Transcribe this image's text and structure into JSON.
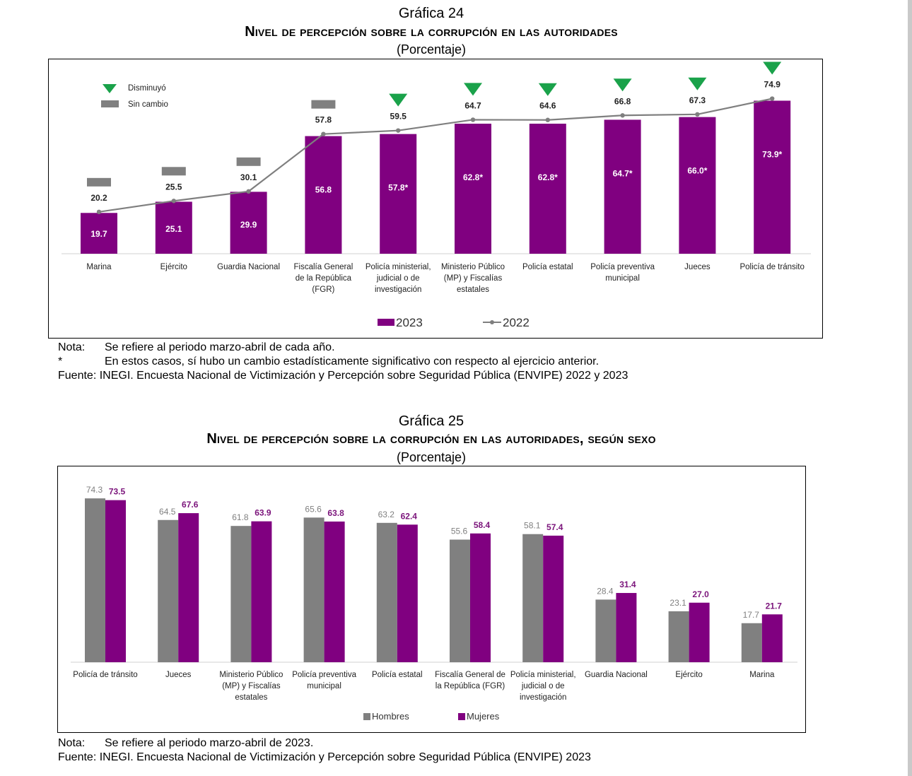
{
  "colors": {
    "purple": "#800080",
    "gray": "#808080",
    "green": "#1aa24a",
    "line2022": "#7f7f7f",
    "womenLabel": "#7b147b"
  },
  "chart24": {
    "number": "Gráfica 24",
    "title": "Nivel de percepción sobre la corrupción en las autoridades",
    "unit": "(Porcentaje)",
    "notes": [
      {
        "key": "Nota:",
        "text": "Se refiere al periodo marzo-abril de cada año."
      },
      {
        "key": "*",
        "text": "En estos casos, sí hubo un cambio estadísticamente significativo con respecto al ejercicio anterior."
      },
      {
        "key": "Fuente:",
        "text": "INEGI. Encuesta Nacional de Victimización y Percepción sobre Seguridad Pública (ENVIPE) 2022 y 2023"
      }
    ]
  },
  "chart25": {
    "number": "Gráfica 25",
    "title": "Nivel de percepción sobre la corrupción en las autoridades, según sexo",
    "unit": "(Porcentaje)",
    "notes": [
      {
        "key": "Nota:",
        "text": "Se refiere al periodo marzo-abril de 2023."
      },
      {
        "key": "Fuente:",
        "text": "INEGI. Encuesta Nacional de Victimización y Percepción sobre Seguridad Pública (ENVIPE) 2023"
      }
    ]
  },
  "chart_data": [
    {
      "type": "bar",
      "title": "Nivel de percepción sobre la corrupción en las autoridades",
      "categories": [
        [
          "Marina"
        ],
        [
          "Ejército"
        ],
        [
          "Guardia Nacional"
        ],
        [
          "Fiscalía General",
          "de la República",
          "(FGR)"
        ],
        [
          "Policía ministerial,",
          "judicial o de",
          "investigación"
        ],
        [
          "Ministerio Público",
          "(MP) y Fiscalías",
          "estatales"
        ],
        [
          "Policía estatal"
        ],
        [
          "Policía preventiva",
          "municipal"
        ],
        [
          "Jueces"
        ],
        [
          "Policía de tránsito"
        ]
      ],
      "series": [
        {
          "name": "2023",
          "type": "bar",
          "values": [
            19.7,
            25.1,
            29.9,
            56.8,
            57.8,
            62.8,
            62.8,
            64.7,
            66.0,
            73.9
          ],
          "labels": [
            "19.7",
            "25.1",
            "29.9",
            "56.8",
            "57.8*",
            "62.8*",
            "62.8*",
            "64.7*",
            "66.0*",
            "73.9*"
          ]
        },
        {
          "name": "2022",
          "type": "line",
          "values": [
            20.2,
            25.5,
            30.1,
            57.8,
            59.5,
            64.7,
            64.6,
            66.8,
            67.3,
            74.9
          ],
          "labels": [
            "20.2",
            "25.5",
            "30.1",
            "57.8",
            "59.5",
            "64.7",
            "64.6",
            "66.8",
            "67.3",
            "74.9"
          ]
        }
      ],
      "change_markers": [
        "sin_cambio",
        "sin_cambio",
        "sin_cambio",
        "sin_cambio",
        "disminuyo",
        "disminuyo",
        "disminuyo",
        "disminuyo",
        "disminuyo",
        "disminuyo"
      ],
      "marker_legend": {
        "disminuyo": "Disminuyó",
        "sin_cambio": "Sin cambio"
      },
      "ylim": [
        0,
        80
      ],
      "grid": false,
      "legend": "bottom"
    },
    {
      "type": "bar",
      "title": "Nivel de percepción sobre la corrupción en las autoridades, según sexo",
      "categories": [
        [
          "Policía de tránsito"
        ],
        [
          "Jueces"
        ],
        [
          "Ministerio Público",
          "(MP) y Fiscalías",
          "estatales"
        ],
        [
          "Policía preventiva",
          "municipal"
        ],
        [
          "Policía estatal"
        ],
        [
          "Fiscalía General de",
          "la República (FGR)"
        ],
        [
          "Policía ministerial,",
          "judicial o de",
          "investigación"
        ],
        [
          "Guardia Nacional"
        ],
        [
          "Ejército"
        ],
        [
          "Marina"
        ]
      ],
      "series": [
        {
          "name": "Hombres",
          "values": [
            74.3,
            64.5,
            61.8,
            65.6,
            63.2,
            55.6,
            58.1,
            28.4,
            23.1,
            17.7
          ],
          "labels": [
            "74.3",
            "64.5",
            "61.8",
            "65.6",
            "63.2",
            "55.6",
            "58.1",
            "28.4",
            "23.1",
            "17.7"
          ]
        },
        {
          "name": "Mujeres",
          "values": [
            73.5,
            67.6,
            63.9,
            63.8,
            62.4,
            58.4,
            57.4,
            31.4,
            27.0,
            21.7
          ],
          "labels": [
            "73.5",
            "67.6",
            "63.9",
            "63.8",
            "62.4",
            "58.4",
            "57.4",
            "31.4",
            "27.0",
            "21.7"
          ]
        }
      ],
      "ylim": [
        0,
        80
      ],
      "grid": false,
      "legend": "bottom"
    }
  ]
}
